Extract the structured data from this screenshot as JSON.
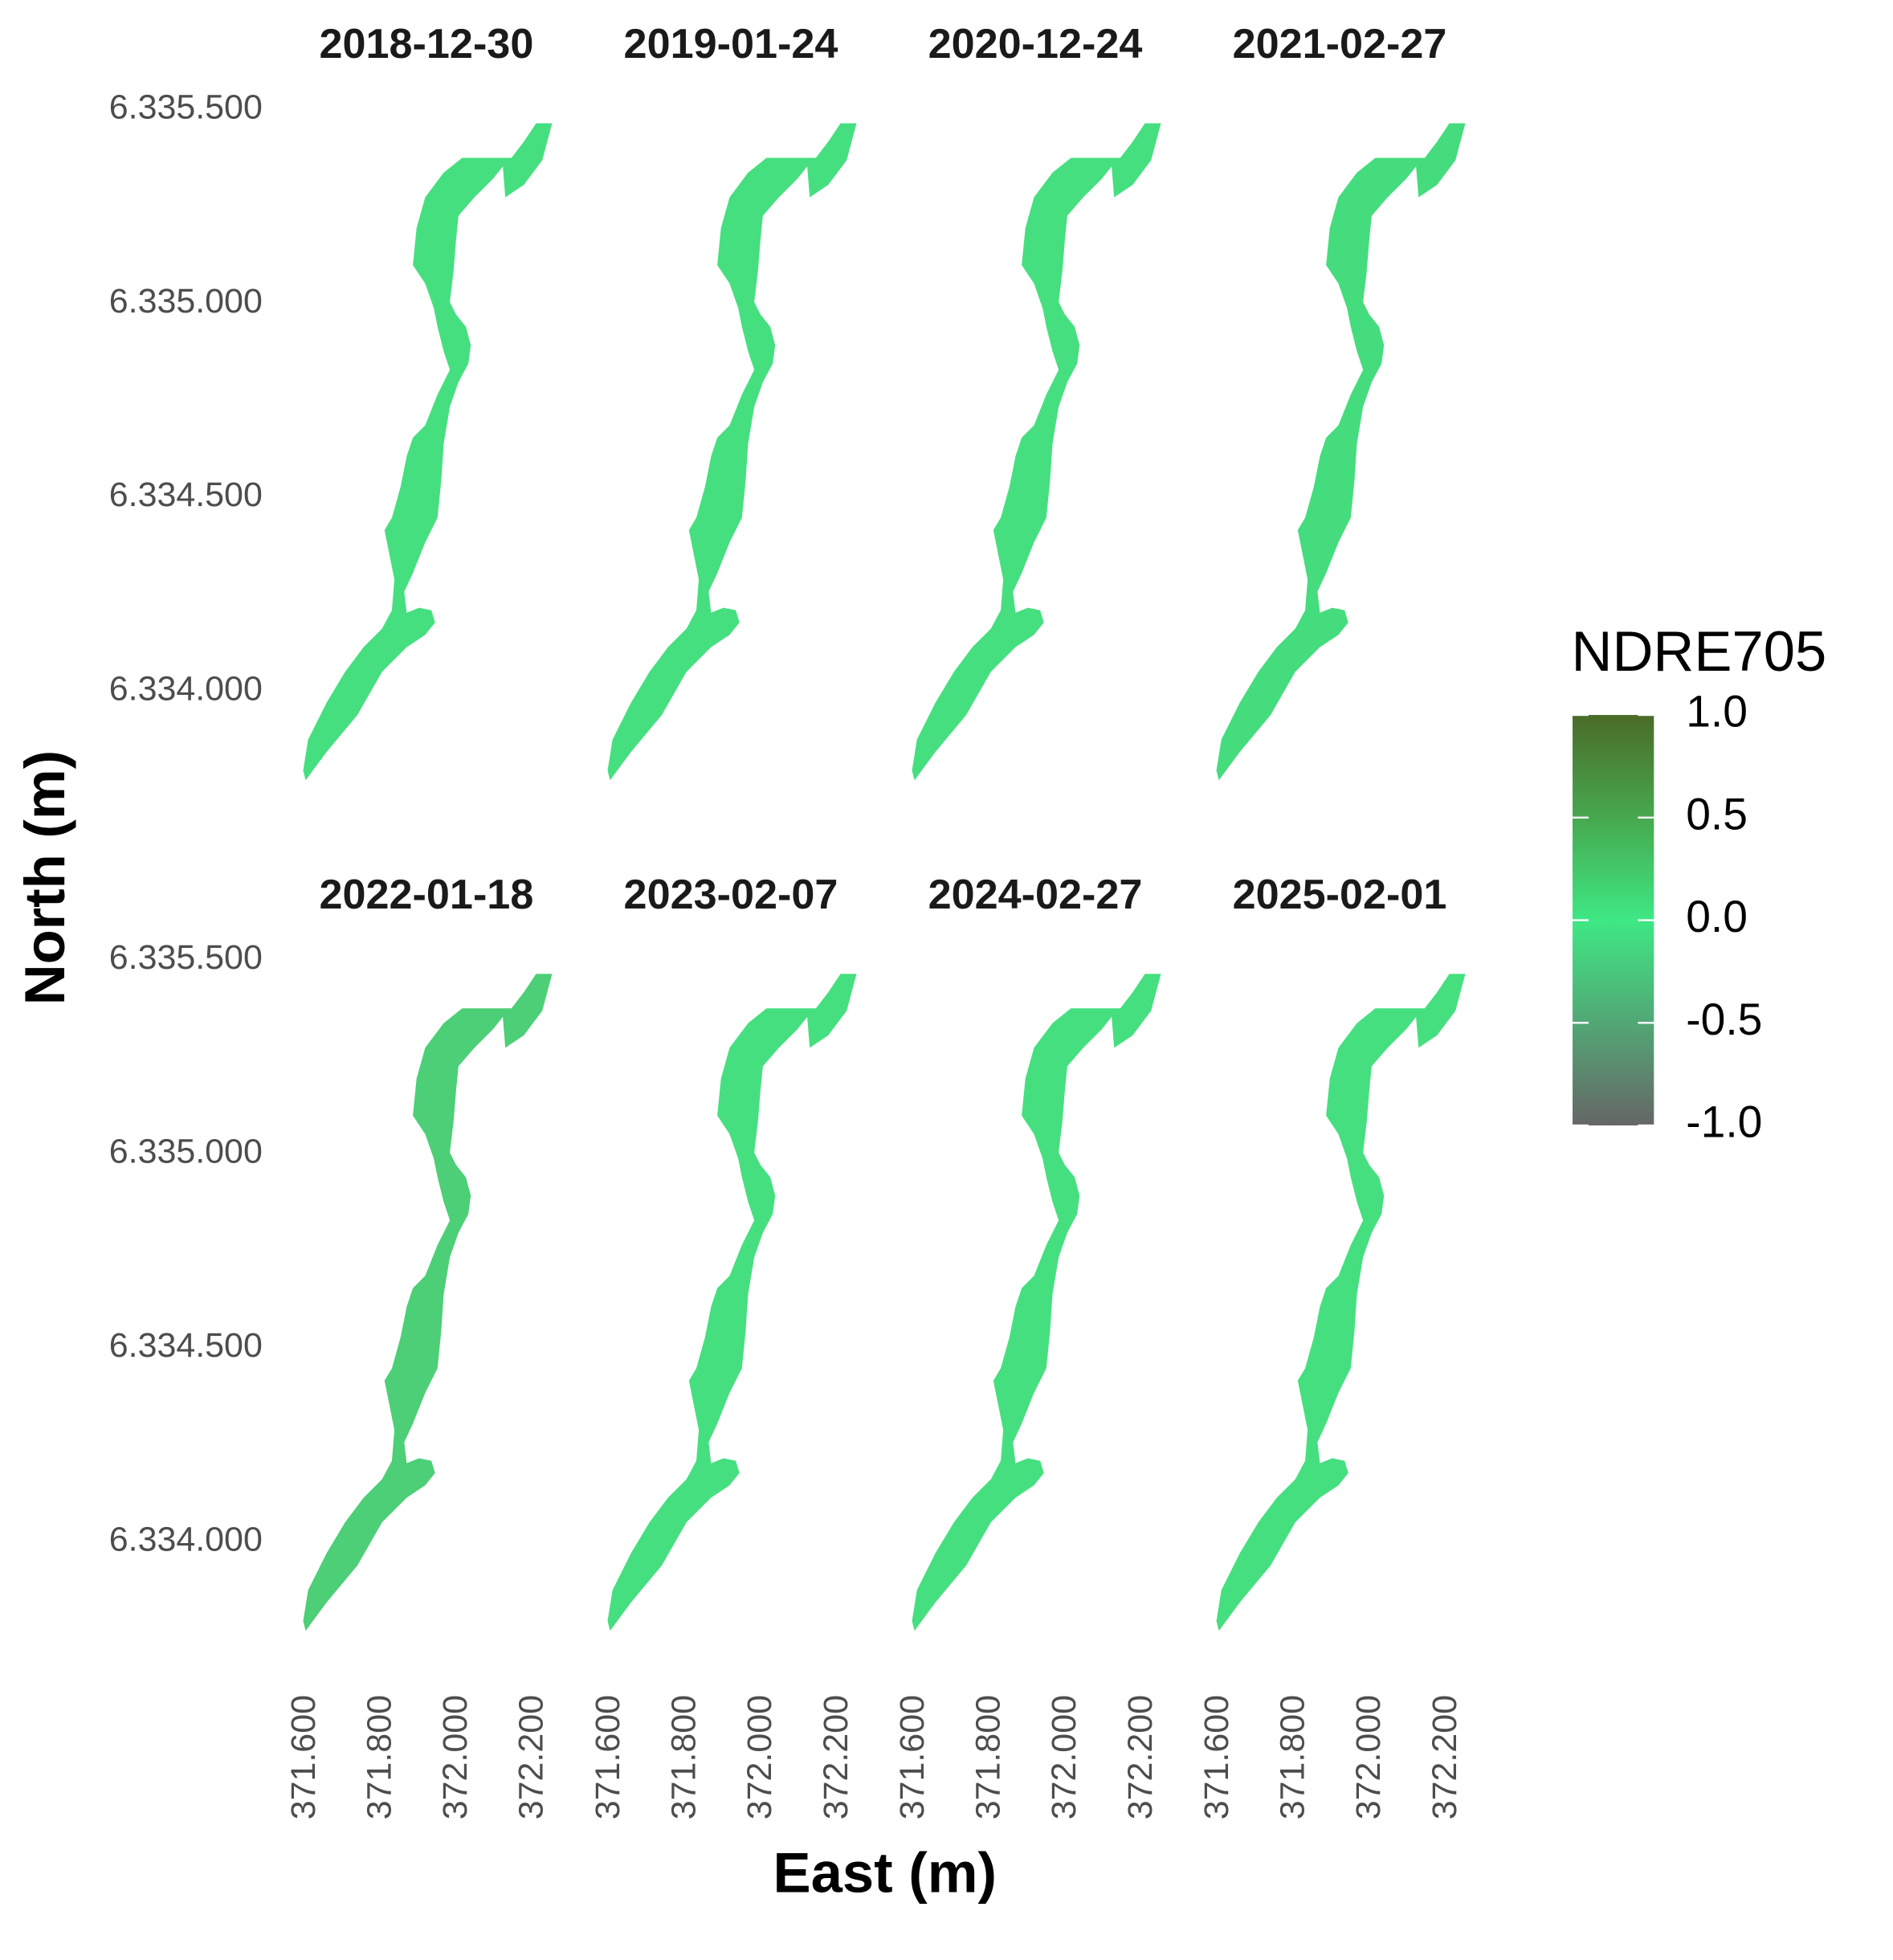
{
  "chart_data": {
    "type": "raster-facets",
    "x_label": "East (m)",
    "y_label": "North (m)",
    "xlim": [
      371600,
      372252
    ],
    "ylim": [
      6333770,
      6335470
    ],
    "xticks": [
      {
        "value": 371600,
        "label": "371.600"
      },
      {
        "value": 371800,
        "label": "371.800"
      },
      {
        "value": 372000,
        "label": "372.000"
      },
      {
        "value": 372200,
        "label": "372.200"
      }
    ],
    "yticks": [
      {
        "value": 6334000,
        "label": "6.334.000"
      },
      {
        "value": 6334500,
        "label": "6.334.500"
      },
      {
        "value": 6335000,
        "label": "6.335.000"
      },
      {
        "value": 6335500,
        "label": "6.335.500"
      }
    ],
    "facets": [
      {
        "title": "2018-12-30",
        "color": "#46df80"
      },
      {
        "title": "2019-01-24",
        "color": "#46df80"
      },
      {
        "title": "2020-12-24",
        "color": "#46df80"
      },
      {
        "title": "2021-02-27",
        "color": "#45dc7e"
      },
      {
        "title": "2022-01-18",
        "color": "#4ccf76"
      },
      {
        "title": "2023-02-07",
        "color": "#46df80"
      },
      {
        "title": "2024-02-27",
        "color": "#46df80"
      },
      {
        "title": "2025-02-01",
        "color": "#46df80"
      }
    ],
    "legend": {
      "title": "NDRE705",
      "lim": [
        -1,
        1
      ],
      "ticks": [
        {
          "value": 1,
          "label": "1.0"
        },
        0.5,
        {
          "value": 0,
          "label": "0.0"
        },
        -0.5,
        {
          "value": -1,
          "label": "-1.0"
        }
      ],
      "colors": [
        {
          "value": -1,
          "color": "#666666"
        },
        {
          "value": 0,
          "color": "#3ee884"
        },
        {
          "value": 0.5,
          "color": "#47a84e"
        },
        {
          "value": 1,
          "color": "#4a6b27"
        }
      ]
    }
  }
}
